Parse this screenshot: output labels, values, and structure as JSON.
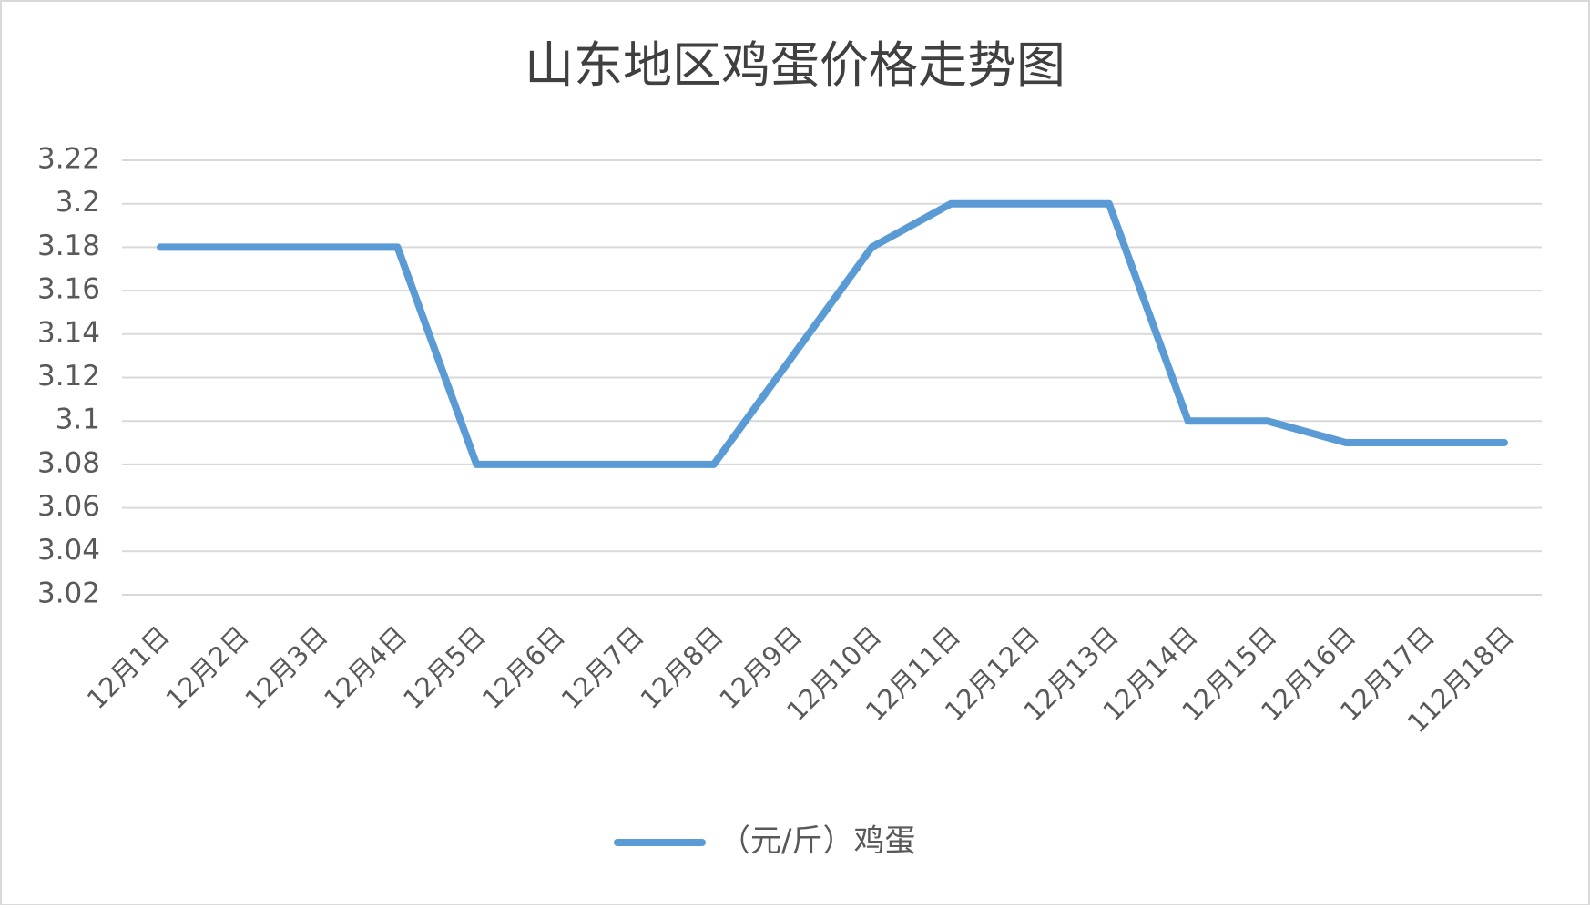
{
  "chart_data": {
    "type": "line",
    "title": "山东地区鸡蛋价格走势图",
    "categories": [
      "12月1日",
      "12月2日",
      "12月3日",
      "12月4日",
      "12月5日",
      "12月6日",
      "12月7日",
      "12月8日",
      "12月9日",
      "12月10日",
      "12月11日",
      "12月12日",
      "12月13日",
      "12月14日",
      "12月15日",
      "12月16日",
      "12月17日",
      "112月18日"
    ],
    "series": [
      {
        "name": "（元/斤）鸡蛋",
        "color": "#5b9bd5",
        "values": [
          3.18,
          3.18,
          3.18,
          3.18,
          3.08,
          3.08,
          3.08,
          3.08,
          3.13,
          3.18,
          3.2,
          3.2,
          3.2,
          3.1,
          3.1,
          3.09,
          3.09,
          3.09
        ]
      }
    ],
    "ylim": [
      3.02,
      3.22
    ],
    "yticks": [
      3.02,
      3.04,
      3.06,
      3.08,
      3.1,
      3.12,
      3.14,
      3.16,
      3.18,
      3.2,
      3.22
    ],
    "grid": true,
    "legend": "bottom"
  }
}
